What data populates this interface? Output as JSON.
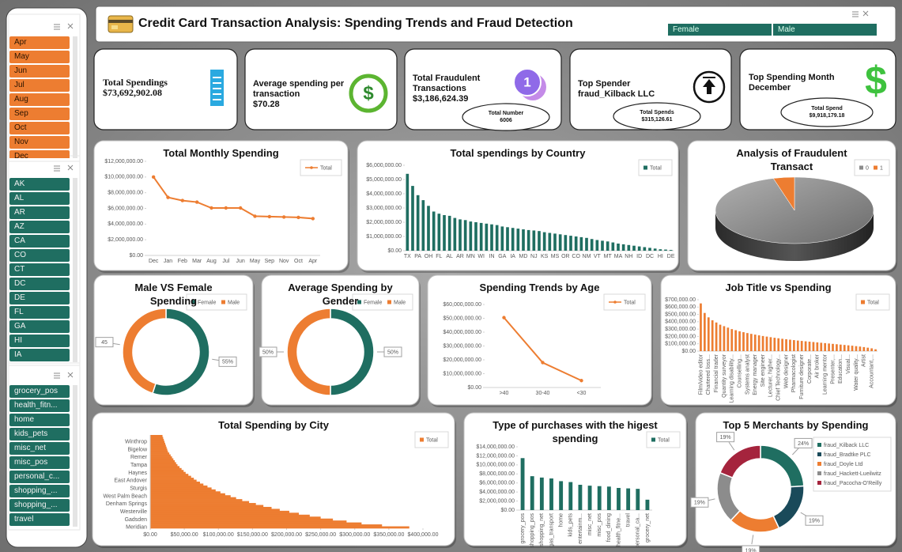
{
  "header": {
    "title": "Credit Card Transaction Analysis: Spending Trends and Fraud Detection",
    "gender_slicer": [
      "Female",
      "Male"
    ]
  },
  "slicers": [
    {
      "items": [
        "Apr",
        "May",
        "Jun",
        "Jul",
        "Aug",
        "Sep",
        "Oct",
        "Nov",
        "Dec"
      ]
    },
    {
      "items": [
        "AK",
        "AL",
        "AR",
        "AZ",
        "CA",
        "CO",
        "CT",
        "DC",
        "DE",
        "FL",
        "GA",
        "HI",
        "IA"
      ]
    },
    {
      "items": [
        "grocery_pos",
        "health_fitn...",
        "home",
        "kids_pets",
        "misc_net",
        "misc_pos",
        "personal_c...",
        "shopping_...",
        "shopping_...",
        "travel"
      ]
    }
  ],
  "kpis": [
    {
      "label": "Total Spendings",
      "value": "$73,692,902.08"
    },
    {
      "label": "Average spending per transaction",
      "value": "$70.28"
    },
    {
      "label": "Total Fraudulent Transactions",
      "value": "$3,186,624.39",
      "badge_label": "Total Number",
      "badge_value": "6006"
    },
    {
      "label": "Top Spender",
      "value": "fraud_Kilback LLC",
      "badge_label": "Total Spends",
      "badge_value": "$315,126.61"
    },
    {
      "label": "Top Spending Month",
      "value": "December",
      "badge_label": "Total Spend",
      "badge_value": "$9,918,179.18"
    }
  ],
  "chart_data": [
    {
      "type": "line",
      "title": "Total Monthly Spending",
      "legend": "top-right",
      "categories": [
        "Dec",
        "Jan",
        "Feb",
        "Mar",
        "Aug",
        "Jul",
        "Jun",
        "May",
        "Sep",
        "Nov",
        "Oct",
        "Apr"
      ],
      "series": [
        {
          "name": "Total",
          "color": "#ed7d31",
          "values": [
            10000000,
            7400000,
            7000000,
            6800000,
            6050000,
            6050000,
            6050000,
            5000000,
            4950000,
            4900000,
            4850000,
            4700000
          ]
        }
      ],
      "ylim": [
        0,
        12000000
      ],
      "yticks": [
        {
          "value": 0,
          "label": "$0.00"
        },
        {
          "value": 2000000,
          "label": "$2,000,000.00"
        },
        {
          "value": 4000000,
          "label": "$4,000,000.00"
        },
        {
          "value": 6000000,
          "label": "$6,000,000.00"
        },
        {
          "value": 8000000,
          "label": "$8,000,000.00"
        },
        {
          "value": 10000000,
          "label": "$10,000,000.00"
        },
        {
          "value": 12000000,
          "label": "$12,000,000.00"
        }
      ]
    },
    {
      "type": "bar",
      "title": "Total spendings by Country",
      "legend": "top-right",
      "categories": [
        "TX",
        null,
        "PA",
        null,
        "OH",
        null,
        "FL",
        null,
        "AL",
        null,
        "AR",
        null,
        "MN",
        null,
        "WI",
        null,
        "IN",
        null,
        "GA",
        null,
        "IA",
        null,
        "MD",
        null,
        "NJ",
        null,
        "KS",
        null,
        "MS",
        null,
        "OR",
        null,
        "CO",
        null,
        "NM",
        null,
        "VT",
        null,
        "MT",
        null,
        "MA",
        null,
        "NH",
        null,
        "ID",
        null,
        "DC",
        null,
        "HI",
        null,
        "DE"
      ],
      "series": [
        {
          "name": "Total",
          "color": "#1f6e61",
          "values": [
            5400000,
            4550000,
            3900000,
            3550000,
            3150000,
            2750000,
            2600000,
            2500000,
            2450000,
            2300000,
            2200000,
            2150000,
            2050000,
            2000000,
            1950000,
            1900000,
            1850000,
            1800000,
            1700000,
            1650000,
            1600000,
            1550000,
            1500000,
            1450000,
            1420000,
            1380000,
            1300000,
            1250000,
            1200000,
            1150000,
            1100000,
            1050000,
            1000000,
            950000,
            900000,
            820000,
            750000,
            700000,
            650000,
            580000,
            500000,
            450000,
            400000,
            350000,
            300000,
            250000,
            200000,
            150000,
            100000,
            80000,
            50000
          ]
        }
      ],
      "ylim": [
        0,
        6000000
      ],
      "yticks": [
        {
          "value": 0,
          "label": "$0.00"
        },
        {
          "value": 1000000,
          "label": "$1,000,000.00"
        },
        {
          "value": 2000000,
          "label": "$2,000,000.00"
        },
        {
          "value": 3000000,
          "label": "$3,000,000.00"
        },
        {
          "value": 4000000,
          "label": "$4,000,000.00"
        },
        {
          "value": 5000000,
          "label": "$5,000,000.00"
        },
        {
          "value": 6000000,
          "label": "$6,000,000.00"
        }
      ]
    },
    {
      "type": "pie",
      "three_d": true,
      "title": "Analysis of Fraudulent Transact",
      "legend": "top-right",
      "categories": [
        "0",
        "1"
      ],
      "values": [
        95.7,
        4.3
      ],
      "colors": [
        "#8c8c8c",
        "#ed7d31"
      ]
    },
    {
      "type": "donut",
      "title": "Male VS Female Spending",
      "legend": "top-right",
      "categories": [
        "Female",
        "Male"
      ],
      "values": [
        55,
        45
      ],
      "value_labels": [
        "55%",
        "45"
      ],
      "colors": [
        "#1f6e61",
        "#ed7d31"
      ]
    },
    {
      "type": "donut",
      "title": "Average Spending by Gender",
      "legend": "top-right",
      "categories": [
        "Female",
        "Male"
      ],
      "values": [
        50,
        50
      ],
      "value_labels": [
        "50%",
        "50%"
      ],
      "colors": [
        "#1f6e61",
        "#ed7d31"
      ]
    },
    {
      "type": "line",
      "title": "Spending Trends by Age",
      "legend": "top-right",
      "categories": [
        ">40",
        "30-40",
        "<30"
      ],
      "series": [
        {
          "name": "Total",
          "color": "#ed7d31",
          "values": [
            50500000,
            18000000,
            5000000
          ]
        }
      ],
      "ylim": [
        0,
        60000000
      ],
      "yticks": [
        {
          "value": 0,
          "label": "$0.00"
        },
        {
          "value": 10000000,
          "label": "$10,000,000.00"
        },
        {
          "value": 20000000,
          "label": "$20,000,000.00"
        },
        {
          "value": 30000000,
          "label": "$30,000,000.00"
        },
        {
          "value": 40000000,
          "label": "$40,000,000.00"
        },
        {
          "value": 50000000,
          "label": "$50,000,000.00"
        },
        {
          "value": 60000000,
          "label": "$60,000,000.00"
        }
      ]
    },
    {
      "type": "bar",
      "title": "Job Title vs Spending",
      "legend": "top-right",
      "categories": [
        "Film/video editor",
        null,
        "Chartered loss...",
        null,
        "Financial trader",
        null,
        "Quantity surveyor",
        null,
        "Learning disability...",
        null,
        "Counselling...",
        null,
        "Systems analyst",
        null,
        "Energy manager",
        null,
        "Site engineer",
        null,
        "Lecturer, higher...",
        null,
        "Chief Technology...",
        null,
        "Web designer",
        null,
        "Pharmacologist",
        null,
        "Furniture designer",
        null,
        "Corporate...",
        null,
        "Air broker",
        null,
        "Learning mentor",
        null,
        "Presenter,...",
        null,
        "Education...",
        null,
        "Visual...",
        null,
        "Water quality...",
        null,
        "Artist",
        null,
        "Accountant,...",
        null
      ],
      "series": [
        {
          "name": "Total",
          "color": "#ed7d31",
          "values": [
            650000,
            520000,
            460000,
            420000,
            390000,
            360000,
            340000,
            320000,
            300000,
            285000,
            270000,
            258000,
            246000,
            235000,
            225000,
            215000,
            206000,
            198000,
            190000,
            182000,
            175000,
            168000,
            162000,
            156000,
            150000,
            144000,
            139000,
            134000,
            129000,
            124000,
            119000,
            114000,
            109000,
            104000,
            99000,
            94000,
            89000,
            84000,
            79000,
            74000,
            68000,
            62000,
            55000,
            47000,
            38000,
            25000
          ]
        }
      ],
      "ylim": [
        0,
        700000
      ],
      "yticks": [
        {
          "value": 0,
          "label": "$0.00"
        },
        {
          "value": 100000,
          "label": "$100,000.00"
        },
        {
          "value": 200000,
          "label": "$200,000.00"
        },
        {
          "value": 300000,
          "label": "$300,000.00"
        },
        {
          "value": 400000,
          "label": "$400,000.00"
        },
        {
          "value": 500000,
          "label": "$500,000.00"
        },
        {
          "value": 600000,
          "label": "$600,000.00"
        },
        {
          "value": 700000,
          "label": "$700,000.00"
        }
      ]
    },
    {
      "type": "bar",
      "orientation": "horizontal",
      "title": "Total Spending by City",
      "legend": "top-right",
      "categories": [
        null,
        null,
        null,
        "Winthrop",
        null,
        null,
        null,
        "Bigelow",
        null,
        null,
        null,
        "Remer",
        null,
        null,
        null,
        "Tampa",
        null,
        null,
        null,
        "Haynes",
        null,
        null,
        null,
        "East Andover",
        null,
        null,
        null,
        "Sturgis",
        null,
        null,
        null,
        "West Palm Beach",
        null,
        null,
        null,
        "Denham Springs",
        null,
        null,
        null,
        "Westerville",
        null,
        null,
        null,
        "Gadsden",
        null,
        null,
        null,
        "Meridian"
      ],
      "series": [
        {
          "name": "Total",
          "color": "#ed7d31",
          "values": [
            18000,
            19000,
            20000,
            21000,
            22000,
            23000,
            24000,
            25000,
            26000,
            28000,
            30000,
            32000,
            34000,
            36000,
            38000,
            40000,
            43000,
            46000,
            49000,
            52000,
            56000,
            60000,
            64000,
            68000,
            73000,
            78000,
            84000,
            90000,
            96000,
            103000,
            110000,
            118000,
            126000,
            135000,
            145000,
            155000,
            166000,
            178000,
            190000,
            204000,
            218000,
            234000,
            250000,
            268000,
            288000,
            310000,
            340000,
            380000
          ]
        }
      ],
      "xlim": [
        0,
        400000
      ],
      "xticks": [
        {
          "value": 0,
          "label": "$0.00"
        },
        {
          "value": 50000,
          "label": "$50,000.00"
        },
        {
          "value": 100000,
          "label": "$100,000.00"
        },
        {
          "value": 150000,
          "label": "$150,000.00"
        },
        {
          "value": 200000,
          "label": "$200,000.00"
        },
        {
          "value": 250000,
          "label": "$250,000.00"
        },
        {
          "value": 300000,
          "label": "$300,000.00"
        },
        {
          "value": 350000,
          "label": "$350,000.00"
        },
        {
          "value": 400000,
          "label": "$400,000.00"
        }
      ]
    },
    {
      "type": "bar",
      "title": "Type of purchases with the higest spending",
      "legend": "top-right",
      "categories": [
        "grocery_pos",
        "shopping_pos",
        "shopping_net",
        "gas_transport",
        "home",
        "kids_pets",
        "entertainm...",
        "misc_net",
        "misc_pos",
        "food_dining",
        "health_fitne...",
        "travel",
        "personal_ca...",
        "grocery_net"
      ],
      "series": [
        {
          "name": "Total",
          "color": "#1f6e61",
          "values": [
            11500000,
            7500000,
            7200000,
            7000000,
            6400000,
            6200000,
            5600000,
            5400000,
            5300000,
            5200000,
            4900000,
            4800000,
            4700000,
            2300000
          ]
        }
      ],
      "ylim": [
        0,
        14000000
      ],
      "yticks": [
        {
          "value": 0,
          "label": "$0.00"
        },
        {
          "value": 2000000,
          "label": "$2,000,000.00"
        },
        {
          "value": 4000000,
          "label": "$4,000,000.00"
        },
        {
          "value": 6000000,
          "label": "$6,000,000.00"
        },
        {
          "value": 8000000,
          "label": "$8,000,000.00"
        },
        {
          "value": 10000000,
          "label": "$10,000,000.00"
        },
        {
          "value": 12000000,
          "label": "$12,000,000.00"
        },
        {
          "value": 14000000,
          "label": "$14,000,000.00"
        }
      ]
    },
    {
      "type": "donut",
      "title": "Top 5 Merchants by Spending",
      "legend": "right",
      "categories": [
        "fraud_Kilback LLC",
        "fraud_Bradtke PLC",
        "fraud_Doyle Ltd",
        "fraud_Hackett-Lueilwitz",
        "fraud_Pacocha-O'Reilly"
      ],
      "values": [
        24,
        19,
        19,
        19,
        19
      ],
      "value_labels": [
        "24%",
        "19%",
        "19%",
        "19%",
        "19%"
      ],
      "colors": [
        "#1f6e61",
        "#1a4a5a",
        "#ed7d31",
        "#8c8c8c",
        "#a5243d"
      ]
    }
  ]
}
